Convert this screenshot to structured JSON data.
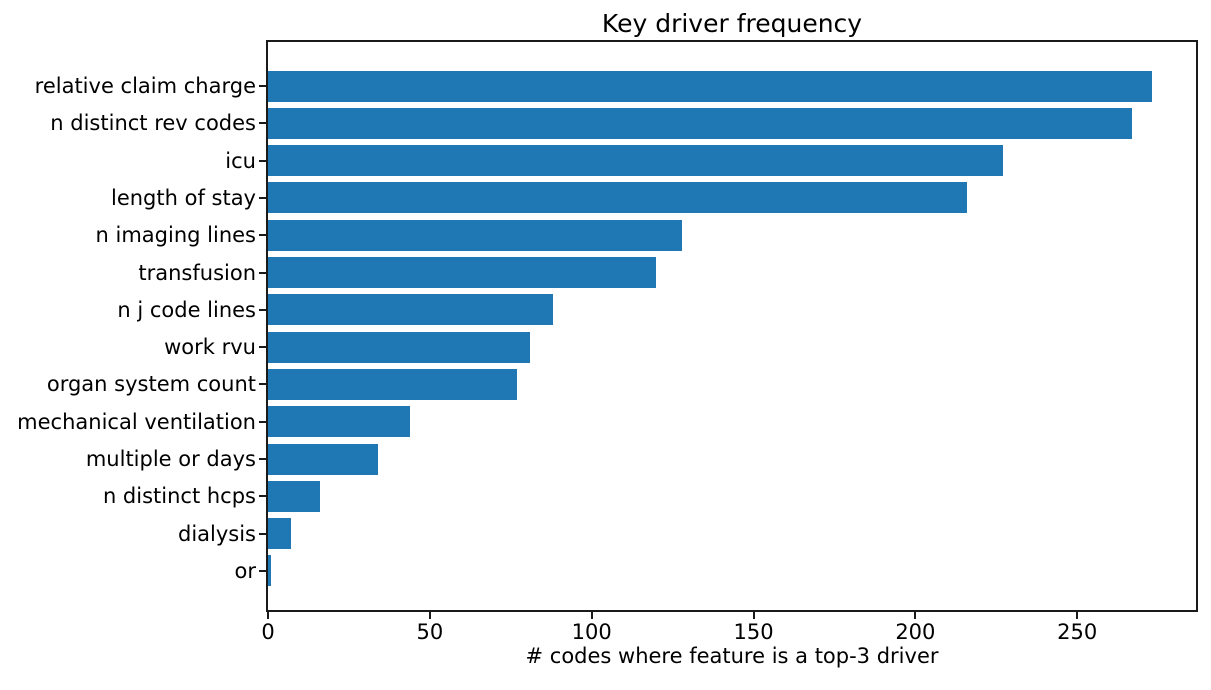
{
  "figure": {
    "background": "#ffffff",
    "text_color": "#000000",
    "spine_color": "#1a1a1a"
  },
  "chart_data": {
    "type": "bar",
    "orientation": "horizontal",
    "title": "Key driver frequency",
    "xlabel": "# codes where feature is a top-3 driver",
    "categories": [
      "relative claim charge",
      "n distinct rev codes",
      "icu",
      "length of stay",
      "n imaging lines",
      "transfusion",
      "n j code lines",
      "work rvu",
      "organ system count",
      "mechanical ventilation",
      "multiple or days",
      "n distinct hcps",
      "dialysis",
      "or"
    ],
    "values": [
      273,
      267,
      227,
      216,
      128,
      120,
      88,
      81,
      77,
      44,
      34,
      16,
      7,
      1
    ],
    "bar_color": "#1f77b4",
    "xticks": [
      0,
      50,
      100,
      150,
      200,
      250
    ],
    "xlim": [
      0,
      286.7
    ],
    "grid": false,
    "legend_position": "none"
  }
}
